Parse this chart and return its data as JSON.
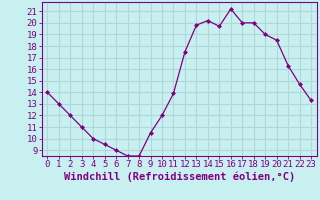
{
  "x": [
    0,
    1,
    2,
    3,
    4,
    5,
    6,
    7,
    8,
    9,
    10,
    11,
    12,
    13,
    14,
    15,
    16,
    17,
    18,
    19,
    20,
    21,
    22,
    23
  ],
  "y": [
    14,
    13,
    12,
    11,
    10,
    9.5,
    9,
    8.5,
    8.5,
    10.5,
    12,
    13.9,
    17.5,
    19.8,
    20.2,
    19.7,
    21.2,
    20,
    20,
    19,
    18.5,
    16.3,
    14.7,
    13.3
  ],
  "line_color": "#800080",
  "marker": "D",
  "marker_size": 2.0,
  "background_color": "#c8f0f0",
  "grid_color": "#b0d8d8",
  "xlabel": "Windchill (Refroidissement éolien,°C)",
  "xlabel_fontsize": 7.5,
  "ylabel_ticks": [
    9,
    10,
    11,
    12,
    13,
    14,
    15,
    16,
    17,
    18,
    19,
    20,
    21
  ],
  "xlim": [
    -0.5,
    23.5
  ],
  "ylim": [
    8.5,
    21.8
  ],
  "tick_fontsize": 6.5,
  "spine_color": "#800080",
  "line_width": 0.9
}
